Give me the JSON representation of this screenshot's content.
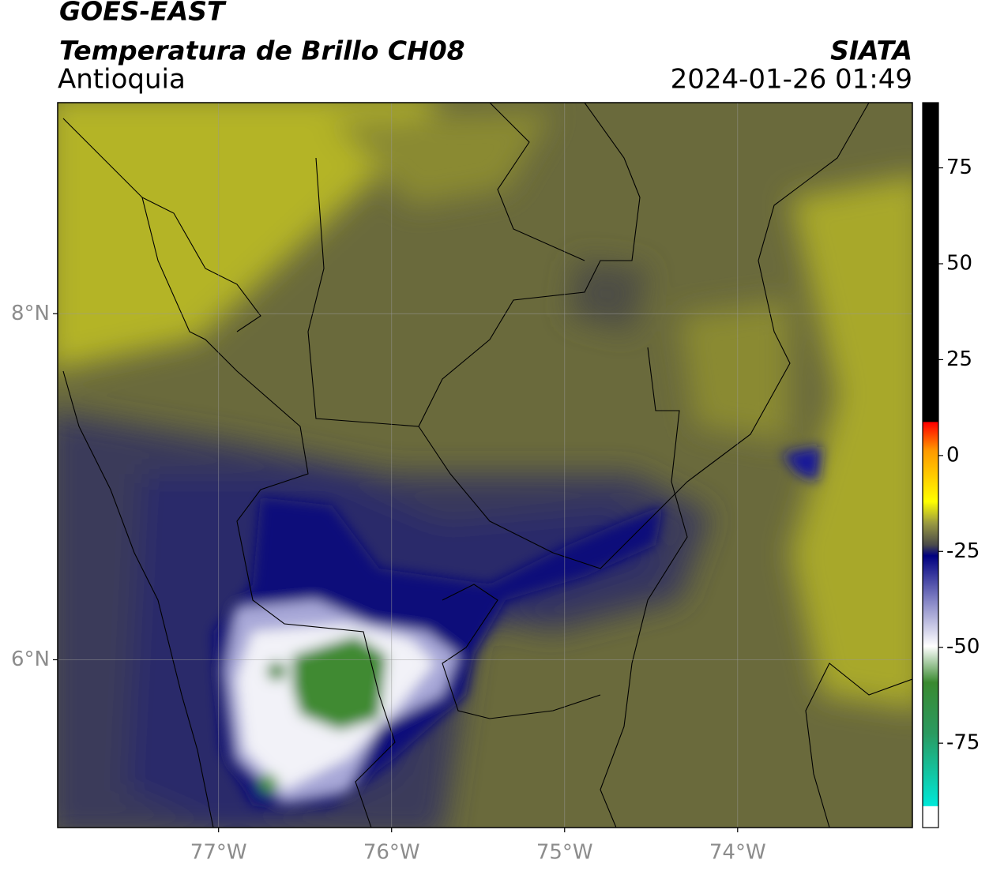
{
  "header": {
    "satellite": "GOES-EAST",
    "product": "Temperatura de Brillo CH08",
    "region": "Antioquia",
    "source": "SIATA",
    "datetime": "2024-01-26 01:49"
  },
  "map": {
    "lonlim": [
      -77.93,
      -72.99
    ],
    "latlim": [
      5.03,
      9.22
    ],
    "lonticks": [
      {
        "value": -77,
        "label": "77°W"
      },
      {
        "value": -76,
        "label": "76°W"
      },
      {
        "value": -75,
        "label": "75°W"
      },
      {
        "value": -74,
        "label": "74°W"
      }
    ],
    "latticks": [
      {
        "value": 8,
        "label": "8°N"
      },
      {
        "value": 6,
        "label": "6°N"
      }
    ]
  },
  "colorbar": {
    "lim": [
      -97,
      92
    ],
    "ticks": [
      75,
      50,
      25,
      0,
      -25,
      -50,
      -75
    ]
  }
}
